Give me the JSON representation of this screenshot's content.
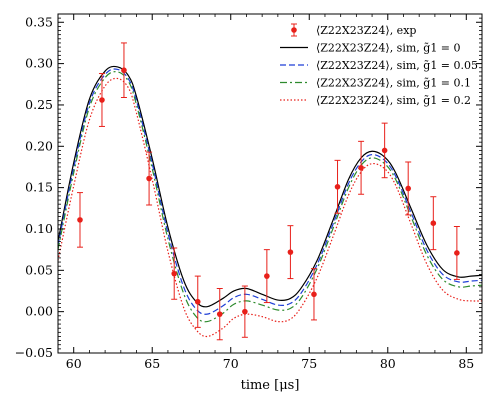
{
  "chart_data": {
    "type": "line",
    "xlabel": "time [μs]",
    "ylabel": "",
    "xlim": [
      59,
      86
    ],
    "ylim": [
      -0.05,
      0.36
    ],
    "x_ticks": [
      60,
      65,
      70,
      75,
      80,
      85
    ],
    "y_ticks": [
      -0.05,
      0.0,
      0.05,
      0.1,
      0.15,
      0.2,
      0.25,
      0.3,
      0.35
    ],
    "x_tick_labels": [
      "60",
      "65",
      "70",
      "75",
      "80",
      "85"
    ],
    "y_tick_labels": [
      "−0.05",
      "0.00",
      "0.05",
      "0.10",
      "0.15",
      "0.20",
      "0.25",
      "0.30",
      "0.35"
    ],
    "grid": false,
    "legend_position": "top-right",
    "experiment": {
      "name": "⟨Z22X23Z24⟩, exp",
      "color": "#e8201a",
      "x": [
        60.4,
        61.8,
        63.2,
        64.8,
        66.4,
        67.9,
        69.3,
        70.9,
        72.3,
        73.8,
        75.3,
        76.8,
        78.3,
        79.8,
        81.3,
        82.9,
        84.4
      ],
      "y": [
        0.111,
        0.256,
        0.292,
        0.161,
        0.046,
        0.012,
        -0.003,
        0.0,
        0.043,
        0.072,
        0.021,
        0.151,
        0.174,
        0.195,
        0.149,
        0.107,
        0.071
      ],
      "yerr": [
        0.033,
        0.032,
        0.033,
        0.032,
        0.031,
        0.031,
        0.031,
        0.031,
        0.032,
        0.032,
        0.031,
        0.032,
        0.032,
        0.033,
        0.032,
        0.032,
        0.032
      ]
    },
    "series": [
      {
        "name": "⟨Z22X23Z24⟩, sim, g̃1 = 0",
        "color": "#000000",
        "dash": "solid",
        "x": [
          59,
          60,
          61,
          62,
          62.8,
          63.5,
          64,
          65,
          66,
          67,
          67.8,
          68.5,
          69.5,
          70.2,
          71,
          72,
          73,
          73.8,
          74.5,
          75.5,
          76.5,
          77.5,
          78.3,
          79,
          79.8,
          80.5,
          81.5,
          82.5,
          83.5,
          84.5,
          85.3,
          86
        ],
        "y": [
          0.085,
          0.18,
          0.257,
          0.291,
          0.296,
          0.285,
          0.26,
          0.185,
          0.102,
          0.038,
          0.012,
          0.006,
          0.016,
          0.025,
          0.028,
          0.021,
          0.014,
          0.016,
          0.029,
          0.062,
          0.11,
          0.16,
          0.186,
          0.194,
          0.187,
          0.168,
          0.124,
          0.08,
          0.051,
          0.042,
          0.043,
          0.044
        ]
      },
      {
        "name": "⟨Z22X23Z24⟩, sim, g̃1 = 0.05",
        "color": "#1f3fd6",
        "dash": "dashed",
        "x": [
          59,
          60,
          61,
          62,
          62.8,
          63.5,
          64,
          65,
          66,
          67,
          67.8,
          68.5,
          69.5,
          70.2,
          71,
          72,
          73,
          73.8,
          74.5,
          75.5,
          76.5,
          77.5,
          78.3,
          79,
          79.8,
          80.5,
          81.5,
          82.5,
          83.5,
          84.5,
          85.3,
          86
        ],
        "y": [
          0.08,
          0.174,
          0.252,
          0.287,
          0.293,
          0.281,
          0.255,
          0.179,
          0.095,
          0.03,
          0.003,
          -0.003,
          0.007,
          0.017,
          0.021,
          0.015,
          0.008,
          0.01,
          0.023,
          0.057,
          0.105,
          0.155,
          0.181,
          0.19,
          0.183,
          0.164,
          0.119,
          0.074,
          0.045,
          0.036,
          0.037,
          0.038
        ]
      },
      {
        "name": "⟨Z22X23Z24⟩, sim, g̃1 = 0.1",
        "color": "#2e8b2e",
        "dash": "dashdot",
        "x": [
          59,
          60,
          61,
          62,
          62.8,
          63.5,
          64,
          65,
          66,
          67,
          67.8,
          68.5,
          69.5,
          70.2,
          71,
          72,
          73,
          73.8,
          74.5,
          75.5,
          76.5,
          77.5,
          78.3,
          79,
          79.8,
          80.5,
          81.5,
          82.5,
          83.5,
          84.5,
          85.3,
          86
        ],
        "y": [
          0.075,
          0.168,
          0.247,
          0.283,
          0.29,
          0.278,
          0.25,
          0.173,
          0.088,
          0.022,
          -0.006,
          -0.012,
          -0.002,
          0.009,
          0.013,
          0.008,
          0.002,
          0.004,
          0.017,
          0.052,
          0.1,
          0.15,
          0.177,
          0.186,
          0.179,
          0.16,
          0.114,
          0.068,
          0.039,
          0.03,
          0.031,
          0.032
        ]
      },
      {
        "name": "⟨Z22X23Z24⟩, sim, g̃1 = 0.2",
        "color": "#e8201a",
        "dash": "dotted",
        "x": [
          59,
          60,
          61,
          62,
          62.8,
          63.5,
          64,
          65,
          66,
          67,
          67.8,
          68.5,
          69.5,
          70.2,
          71,
          72,
          73,
          73.8,
          74.5,
          75.5,
          76.5,
          77.5,
          78.3,
          79,
          79.8,
          80.5,
          81.5,
          82.5,
          83.5,
          84.5,
          85.3,
          86
        ],
        "y": [
          0.062,
          0.152,
          0.232,
          0.273,
          0.282,
          0.27,
          0.24,
          0.16,
          0.073,
          0.005,
          -0.022,
          -0.03,
          -0.02,
          -0.008,
          -0.003,
          -0.006,
          -0.012,
          -0.009,
          0.006,
          0.041,
          0.09,
          0.141,
          0.169,
          0.179,
          0.173,
          0.153,
          0.105,
          0.057,
          0.026,
          0.015,
          0.013,
          0.013
        ]
      }
    ]
  }
}
